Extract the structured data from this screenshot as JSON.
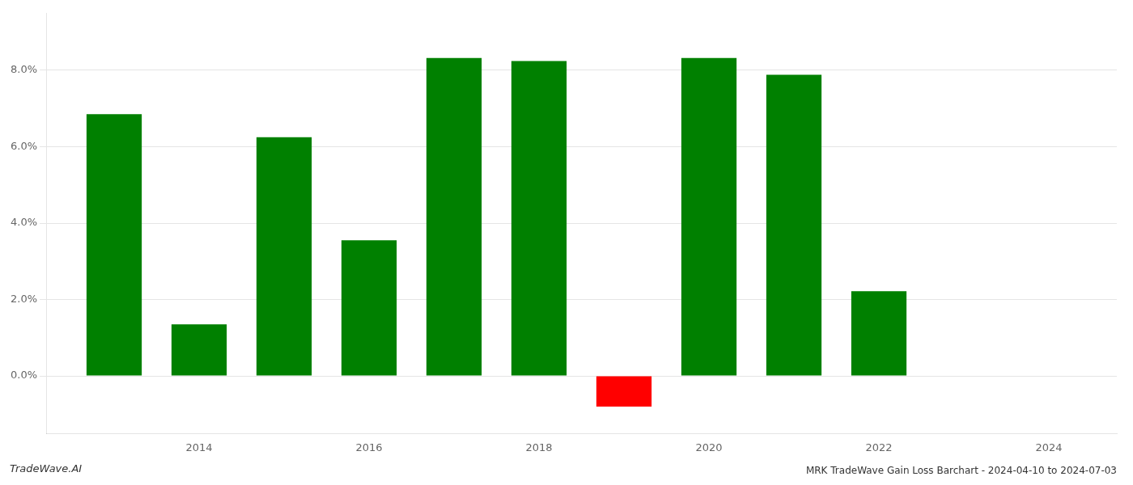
{
  "chart_data": {
    "type": "bar",
    "title": "MRK TradeWave Gain Loss Barchart - 2024-04-10 to 2024-07-03",
    "annotations": [
      "TradeWave.AI"
    ],
    "x": [
      2013,
      2014,
      2015,
      2016,
      2017,
      2018,
      2019,
      2020,
      2021,
      2022,
      2023
    ],
    "values": [
      0.0685,
      0.0135,
      0.0625,
      0.0355,
      0.0832,
      0.0824,
      -0.008,
      0.0832,
      0.0788,
      0.0222,
      0.0
    ],
    "colors": [
      "#008000",
      "#008000",
      "#008000",
      "#008000",
      "#008000",
      "#008000",
      "#ff0000",
      "#008000",
      "#008000",
      "#008000",
      "#008000"
    ],
    "xlim": [
      2012.2,
      2024.8
    ],
    "xticks": [
      2014,
      2016,
      2018,
      2020,
      2022,
      2024
    ],
    "ylim": [
      -0.015,
      0.095
    ],
    "yticks": [
      {
        "value": 0.0,
        "label": "0.0%"
      },
      {
        "value": 0.02,
        "label": "2.0%"
      },
      {
        "value": 0.04,
        "label": "4.0%"
      },
      {
        "value": 0.06,
        "label": "6.0%"
      },
      {
        "value": 0.08,
        "label": "8.0%"
      }
    ],
    "grid": "y"
  }
}
